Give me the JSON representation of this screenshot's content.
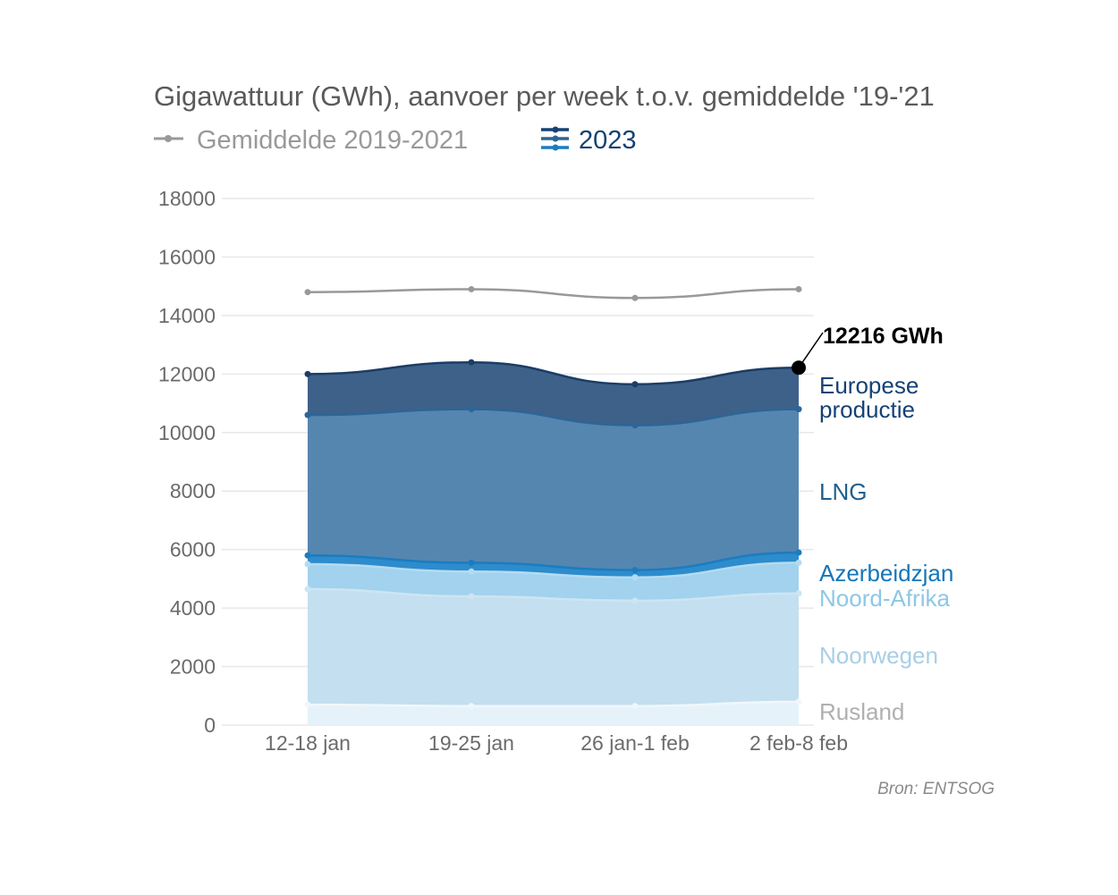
{
  "chart_data": {
    "type": "area",
    "title": "Gigawattuur (GWh), aanvoer per week t.o.v. gemiddelde '19-'21",
    "legend": [
      {
        "label": "Gemiddelde 2019-2021",
        "color": "#999999"
      },
      {
        "label": "2023",
        "color": "#154273"
      }
    ],
    "categories": [
      "12-18 jan",
      "19-25 jan",
      "26 jan-1 feb",
      "2 feb-8 feb"
    ],
    "ylim": [
      0,
      18000
    ],
    "yticks": [
      0,
      2000,
      4000,
      6000,
      8000,
      10000,
      12000,
      14000,
      16000,
      18000
    ],
    "average": {
      "name": "Gemiddelde 2019-2021",
      "values": [
        14800,
        14900,
        14600,
        14900
      ]
    },
    "series": [
      {
        "name": "Rusland",
        "values": [
          700,
          650,
          650,
          800
        ],
        "cumulative": [
          700,
          650,
          650,
          800
        ],
        "fill": "#e6f2f9",
        "line": "#f0f7fb",
        "label_color": "#b0b0b0"
      },
      {
        "name": "Noorwegen",
        "values": [
          3950,
          3750,
          3600,
          3700
        ],
        "cumulative": [
          4650,
          4400,
          4250,
          4500
        ],
        "fill": "#c3dff0",
        "line": "#cde5f3",
        "label_color": "#a8cfe6"
      },
      {
        "name": "Noord-Afrika",
        "values": [
          850,
          850,
          800,
          1050
        ],
        "cumulative": [
          5500,
          5250,
          5050,
          5550
        ],
        "fill": "#a2d2ed",
        "line": "#b4dbf1",
        "label_color": "#8ec7e6"
      },
      {
        "name": "Azerbeidzjan",
        "values": [
          300,
          300,
          250,
          350
        ],
        "cumulative": [
          5800,
          5550,
          5300,
          5900
        ],
        "fill": "#2d8ccc",
        "line": "#1b7cc0",
        "label_color": "#1676b8"
      },
      {
        "name": "LNG",
        "values": [
          4800,
          5250,
          4950,
          4900
        ],
        "cumulative": [
          10600,
          10800,
          10250,
          10800
        ],
        "fill": "#5586b0",
        "line": "#2d6596",
        "label_color": "#1f5f8f"
      },
      {
        "name": "Europese productie",
        "values": [
          1400,
          1600,
          1400,
          1416
        ],
        "cumulative": [
          12000,
          12400,
          11650,
          12216
        ],
        "fill": "#3e6189",
        "line": "#1b3d66",
        "label_color": "#154273"
      }
    ],
    "series_labels": {
      "europese_1": "Europese",
      "europese_2": "productie",
      "lng": "LNG",
      "azerbeidzjan": "Azerbeidzjan",
      "noord_afrika": "Noord-Afrika",
      "noorwegen": "Noorwegen",
      "rusland": "Rusland"
    },
    "annotation": {
      "text": "12216 GWh",
      "value": 12216,
      "category": "2 feb-8 feb"
    },
    "source": "Bron: ENTSOG"
  }
}
